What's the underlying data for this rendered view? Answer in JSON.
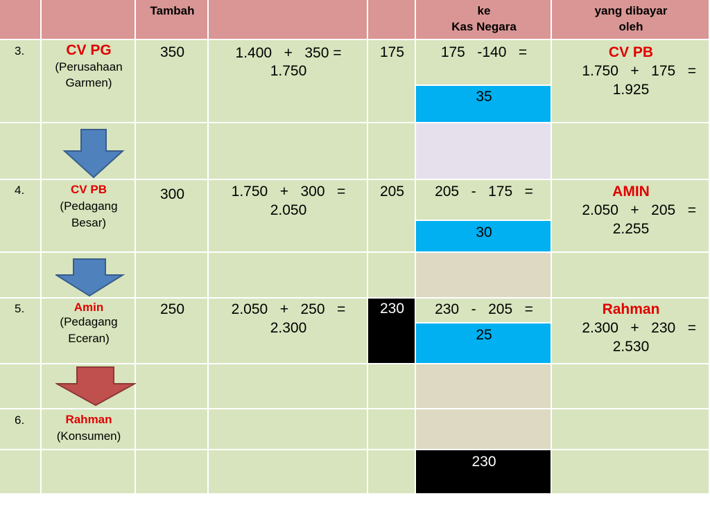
{
  "header": {
    "col2_label": "Tambah",
    "col6_line1": "ke",
    "col6_line2": "Kas Negara",
    "col7_line1": "yang dibayar",
    "col7_line2": "oleh"
  },
  "rows": [
    {
      "no": "3.",
      "name": "CV PG",
      "desc_line1": "(Perusahaan",
      "desc_line2": "Garmen)",
      "nilai_tambah": "350",
      "harga_line1": "1.400   +   350 =",
      "harga_line2": "1.750",
      "ppn": "175",
      "setor_calc": "175   -140   =",
      "setor_result": "35",
      "payer": "CV PB",
      "total_line1": "1.750   +   175   =",
      "total_line2": "1.925"
    },
    {
      "no": "4.",
      "name": "CV PB",
      "desc_line1": "(Pedagang",
      "desc_line2": "Besar)",
      "nilai_tambah": "300",
      "harga_line1": "1.750   +   300   =",
      "harga_line2": "2.050",
      "ppn": "205",
      "setor_calc": "205   -   175   =",
      "setor_result": "30",
      "payer": "AMIN",
      "total_line1": "2.050   +   205   =",
      "total_line2": "2.255"
    },
    {
      "no": "5.",
      "name": "Amin",
      "desc_line1": "(Pedagang",
      "desc_line2": "Eceran)",
      "nilai_tambah": "250",
      "harga_line1": "2.050   +   250   =",
      "harga_line2": "2.300",
      "ppn": "230",
      "setor_calc": "230   -   205   =",
      "setor_result": "25",
      "payer": "Rahman",
      "total_line1": "2.300   +   230   =",
      "total_line2": "2.530"
    },
    {
      "no": "6.",
      "name": "Rahman",
      "desc_line1": "(Konsumen)"
    }
  ],
  "final_total": "230",
  "colors": {
    "header": "#d99694",
    "row_green": "#d7e4bd",
    "lavender": "#e6e0ec",
    "tan": "#ddd9c3",
    "highlight_cyan": "#00b0f0",
    "black_cell": "#000000",
    "name_red": "#e00000",
    "arrow_blue": "#4f81bd",
    "arrow_red": "#c0504d"
  },
  "icons": [
    "down-arrow-blue",
    "down-arrow-blue",
    "down-arrow-red"
  ]
}
